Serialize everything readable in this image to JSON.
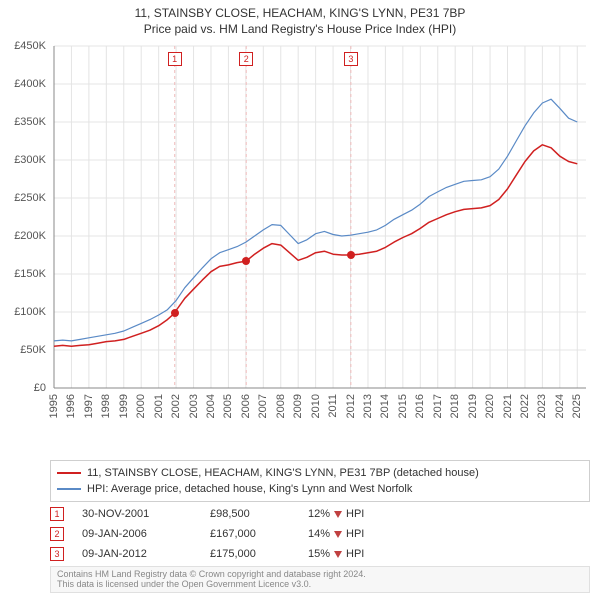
{
  "title_line1": "11, STAINSBY CLOSE, HEACHAM, KING'S LYNN, PE31 7BP",
  "title_line2": "Price paid vs. HM Land Registry's House Price Index (HPI)",
  "chart": {
    "type": "line",
    "background_color": "#ffffff",
    "grid_color": "#e4e4e4",
    "axis_color": "#888888",
    "text_color": "#555555",
    "label_fontsize": 11,
    "xlim": [
      1995,
      2025.5
    ],
    "ylim": [
      0,
      450000
    ],
    "ytick_step": 50000,
    "y_tick_labels": [
      "£0",
      "£50K",
      "£100K",
      "£150K",
      "£200K",
      "£250K",
      "£300K",
      "£350K",
      "£400K",
      "£450K"
    ],
    "x_ticks": [
      1995,
      1996,
      1997,
      1998,
      1999,
      2000,
      2001,
      2002,
      2003,
      2004,
      2005,
      2006,
      2007,
      2008,
      2009,
      2010,
      2011,
      2012,
      2013,
      2014,
      2015,
      2016,
      2017,
      2018,
      2019,
      2020,
      2021,
      2022,
      2023,
      2024,
      2025
    ],
    "event_line_color": "#f0bcbc",
    "event_dash": "3,3",
    "series": {
      "property": {
        "label": "11, STAINSBY CLOSE, HEACHAM, KING'S LYNN, PE31 7BP (detached house)",
        "color": "#d02020",
        "line_width": 1.5,
        "points": [
          [
            1995.0,
            55000
          ],
          [
            1995.5,
            56000
          ],
          [
            1996.0,
            55000
          ],
          [
            1996.5,
            56000
          ],
          [
            1997.0,
            57000
          ],
          [
            1997.5,
            59000
          ],
          [
            1998.0,
            61000
          ],
          [
            1998.5,
            62000
          ],
          [
            1999.0,
            64000
          ],
          [
            1999.5,
            68000
          ],
          [
            2000.0,
            72000
          ],
          [
            2000.5,
            76000
          ],
          [
            2001.0,
            82000
          ],
          [
            2001.5,
            90000
          ],
          [
            2001.92,
            98500
          ],
          [
            2002.0,
            102000
          ],
          [
            2002.5,
            118000
          ],
          [
            2003.0,
            130000
          ],
          [
            2003.5,
            142000
          ],
          [
            2004.0,
            153000
          ],
          [
            2004.5,
            160000
          ],
          [
            2005.0,
            162000
          ],
          [
            2005.5,
            165000
          ],
          [
            2006.02,
            167000
          ],
          [
            2006.5,
            176000
          ],
          [
            2007.0,
            184000
          ],
          [
            2007.5,
            190000
          ],
          [
            2008.0,
            188000
          ],
          [
            2008.5,
            178000
          ],
          [
            2009.0,
            168000
          ],
          [
            2009.5,
            172000
          ],
          [
            2010.0,
            178000
          ],
          [
            2010.5,
            180000
          ],
          [
            2011.0,
            176000
          ],
          [
            2011.5,
            175000
          ],
          [
            2012.02,
            175000
          ],
          [
            2012.5,
            176000
          ],
          [
            2013.0,
            178000
          ],
          [
            2013.5,
            180000
          ],
          [
            2014.0,
            185000
          ],
          [
            2014.5,
            192000
          ],
          [
            2015.0,
            198000
          ],
          [
            2015.5,
            203000
          ],
          [
            2016.0,
            210000
          ],
          [
            2016.5,
            218000
          ],
          [
            2017.0,
            223000
          ],
          [
            2017.5,
            228000
          ],
          [
            2018.0,
            232000
          ],
          [
            2018.5,
            235000
          ],
          [
            2019.0,
            236000
          ],
          [
            2019.5,
            237000
          ],
          [
            2020.0,
            240000
          ],
          [
            2020.5,
            248000
          ],
          [
            2021.0,
            262000
          ],
          [
            2021.5,
            280000
          ],
          [
            2022.0,
            298000
          ],
          [
            2022.5,
            312000
          ],
          [
            2023.0,
            320000
          ],
          [
            2023.5,
            316000
          ],
          [
            2024.0,
            305000
          ],
          [
            2024.5,
            298000
          ],
          [
            2025.0,
            295000
          ]
        ]
      },
      "hpi": {
        "label": "HPI: Average price, detached house, King's Lynn and West Norfolk",
        "color": "#5a8ac6",
        "line_width": 1.2,
        "points": [
          [
            1995.0,
            62000
          ],
          [
            1995.5,
            63000
          ],
          [
            1996.0,
            62000
          ],
          [
            1996.5,
            64000
          ],
          [
            1997.0,
            66000
          ],
          [
            1997.5,
            68000
          ],
          [
            1998.0,
            70000
          ],
          [
            1998.5,
            72000
          ],
          [
            1999.0,
            75000
          ],
          [
            1999.5,
            80000
          ],
          [
            2000.0,
            85000
          ],
          [
            2000.5,
            90000
          ],
          [
            2001.0,
            96000
          ],
          [
            2001.5,
            103000
          ],
          [
            2002.0,
            115000
          ],
          [
            2002.5,
            132000
          ],
          [
            2003.0,
            145000
          ],
          [
            2003.5,
            158000
          ],
          [
            2004.0,
            170000
          ],
          [
            2004.5,
            178000
          ],
          [
            2005.0,
            182000
          ],
          [
            2005.5,
            186000
          ],
          [
            2006.0,
            192000
          ],
          [
            2006.5,
            200000
          ],
          [
            2007.0,
            208000
          ],
          [
            2007.5,
            215000
          ],
          [
            2008.0,
            214000
          ],
          [
            2008.5,
            202000
          ],
          [
            2009.0,
            190000
          ],
          [
            2009.5,
            195000
          ],
          [
            2010.0,
            203000
          ],
          [
            2010.5,
            206000
          ],
          [
            2011.0,
            202000
          ],
          [
            2011.5,
            200000
          ],
          [
            2012.0,
            201000
          ],
          [
            2012.5,
            203000
          ],
          [
            2013.0,
            205000
          ],
          [
            2013.5,
            208000
          ],
          [
            2014.0,
            214000
          ],
          [
            2014.5,
            222000
          ],
          [
            2015.0,
            228000
          ],
          [
            2015.5,
            234000
          ],
          [
            2016.0,
            242000
          ],
          [
            2016.5,
            252000
          ],
          [
            2017.0,
            258000
          ],
          [
            2017.5,
            264000
          ],
          [
            2018.0,
            268000
          ],
          [
            2018.5,
            272000
          ],
          [
            2019.0,
            273000
          ],
          [
            2019.5,
            274000
          ],
          [
            2020.0,
            278000
          ],
          [
            2020.5,
            288000
          ],
          [
            2021.0,
            305000
          ],
          [
            2021.5,
            325000
          ],
          [
            2022.0,
            345000
          ],
          [
            2022.5,
            362000
          ],
          [
            2023.0,
            375000
          ],
          [
            2023.5,
            380000
          ],
          [
            2024.0,
            368000
          ],
          [
            2024.5,
            355000
          ],
          [
            2025.0,
            350000
          ]
        ]
      }
    },
    "events": [
      {
        "n": "1",
        "x": 2001.92,
        "date": "30-NOV-2001",
        "price": "£98,500",
        "diff_pct": "12%",
        "diff_dir": "down",
        "diff_vs": "HPI"
      },
      {
        "n": "2",
        "x": 2006.02,
        "date": "09-JAN-2006",
        "price": "£167,000",
        "diff_pct": "14%",
        "diff_dir": "down",
        "diff_vs": "HPI"
      },
      {
        "n": "3",
        "x": 2012.02,
        "date": "09-JAN-2012",
        "price": "£175,000",
        "diff_pct": "15%",
        "diff_dir": "down",
        "diff_vs": "HPI"
      }
    ]
  },
  "footer": {
    "line1": "Contains HM Land Registry data © Crown copyright and database right 2024.",
    "line2": "This data is licensed under the Open Government Licence v3.0."
  }
}
